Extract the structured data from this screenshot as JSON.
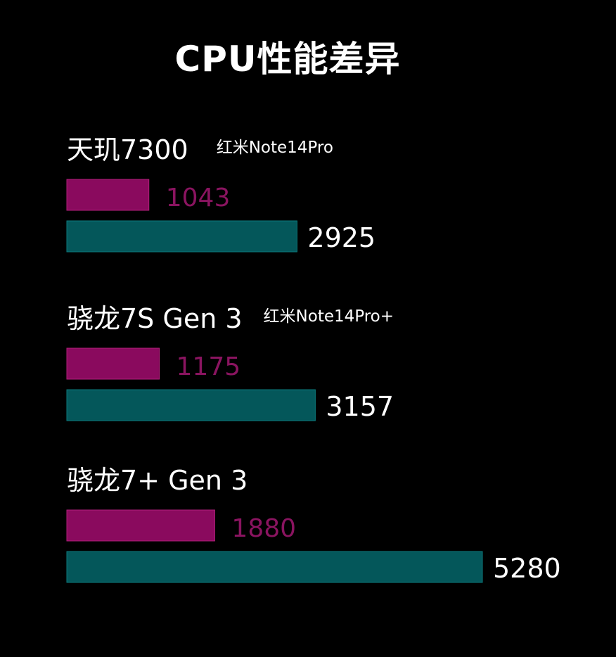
{
  "title": "CPU性能差异",
  "colors": {
    "background": "#000000",
    "single_bar": "#8a0a5e",
    "single_bar_edge": "#b0207a",
    "single_label": "#8a1460",
    "multi_bar": "#04575a",
    "multi_bar_edge": "#0b7a7d",
    "multi_label": "#ffffff",
    "text": "#ffffff"
  },
  "chart_data": {
    "type": "bar",
    "orientation": "horizontal",
    "title": "CPU性能差异",
    "xlim": [
      0,
      5280
    ],
    "grid": false,
    "groups": [
      {
        "chip": "天玑7300",
        "device": "红米Note14Pro",
        "values": [
          1043,
          2925
        ]
      },
      {
        "chip": "骁龙7S Gen 3",
        "device": "红米Note14Pro+",
        "values": [
          1175,
          3157
        ]
      },
      {
        "chip": "骁龙7+ Gen 3",
        "device": "",
        "values": [
          1880,
          5280
        ]
      }
    ]
  }
}
